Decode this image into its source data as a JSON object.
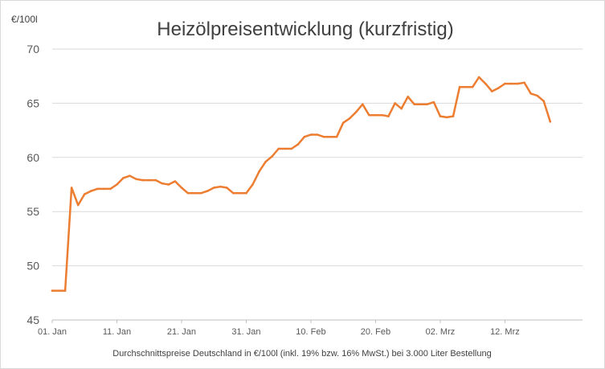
{
  "chart_data": {
    "type": "line",
    "title": "Heizölpreisentwicklung (kurzfristig)",
    "y_unit_label": "€/100l",
    "xlabel": "Durchschnittspreise Deutschland in €/100l (inkl. 19% bzw. 16% MwSt.) bei 3.000 Liter Bestellung",
    "ylabel": "",
    "ylim": [
      45,
      70
    ],
    "yticks": [
      45,
      50,
      55,
      60,
      65,
      70
    ],
    "xlim": [
      1,
      83
    ],
    "xticks": [
      {
        "day": 1,
        "label": "01. Jan"
      },
      {
        "day": 11,
        "label": "11. Jan"
      },
      {
        "day": 21,
        "label": "21. Jan"
      },
      {
        "day": 31,
        "label": "31. Jan"
      },
      {
        "day": 41,
        "label": "10. Feb"
      },
      {
        "day": 51,
        "label": "20. Feb"
      },
      {
        "day": 61,
        "label": "02. Mrz"
      },
      {
        "day": 71,
        "label": "12. Mrz"
      }
    ],
    "grid": true,
    "series": [
      {
        "color": "#ED7D31",
        "x": [
          1,
          3,
          4,
          5,
          6,
          7,
          8,
          9,
          10,
          11,
          12,
          13,
          14,
          15,
          16,
          17,
          18,
          19,
          20,
          21,
          22,
          23,
          24,
          25,
          26,
          27,
          28,
          29,
          30,
          31,
          32,
          33,
          34,
          35,
          36,
          37,
          38,
          39,
          40,
          41,
          42,
          43,
          44,
          45,
          46,
          47,
          48,
          49,
          50,
          51,
          52,
          53,
          54,
          55,
          56,
          57,
          58,
          59,
          60,
          61,
          62,
          63,
          64,
          65,
          66,
          67,
          68,
          69,
          70,
          71,
          72,
          73,
          74,
          75,
          76,
          77,
          78
        ],
        "y": [
          47.7,
          47.7,
          57.2,
          55.6,
          56.6,
          56.9,
          57.1,
          57.1,
          57.1,
          57.5,
          58.1,
          58.3,
          58.0,
          57.9,
          57.9,
          57.9,
          57.6,
          57.5,
          57.8,
          57.2,
          56.7,
          56.7,
          56.7,
          56.9,
          57.2,
          57.3,
          57.2,
          56.7,
          56.7,
          56.7,
          57.5,
          58.7,
          59.6,
          60.1,
          60.8,
          60.8,
          60.8,
          61.2,
          61.9,
          62.1,
          62.1,
          61.9,
          61.9,
          61.9,
          63.2,
          63.6,
          64.2,
          64.9,
          63.9,
          63.9,
          63.9,
          63.8,
          65.0,
          64.5,
          65.6,
          64.9,
          64.9,
          64.9,
          65.1,
          63.8,
          63.7,
          63.8,
          66.5,
          66.5,
          66.5,
          67.4,
          66.8,
          66.1,
          66.4,
          66.8,
          66.8,
          66.8,
          66.9,
          65.9,
          65.7,
          65.2,
          63.3
        ]
      }
    ]
  }
}
